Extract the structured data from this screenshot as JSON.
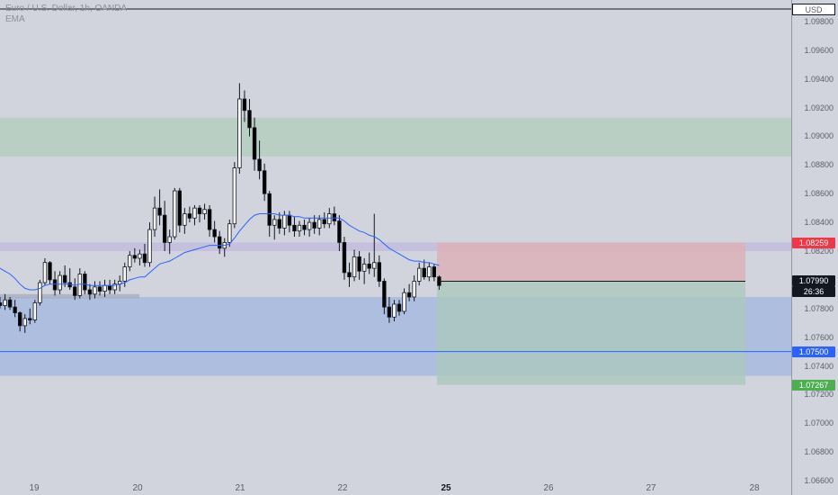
{
  "legend": {
    "symbol": "Euro / U.S. Dollar, 1h, OANDA",
    "indicator": "EMA"
  },
  "currency": "USD",
  "price_scale": {
    "ticks": [
      "1.09800",
      "1.09600",
      "1.09400",
      "1.09200",
      "1.09000",
      "1.08800",
      "1.08600",
      "1.08400",
      "1.08200",
      "1.07800",
      "1.07600",
      "1.07400",
      "1.07200",
      "1.07000",
      "1.06800",
      "1.06600"
    ]
  },
  "time_scale": {
    "labels": [
      "19",
      "20",
      "21",
      "22",
      "25",
      "26",
      "27",
      "28"
    ],
    "bold_label": "25"
  },
  "badges": {
    "stop_price": "1.08259",
    "entry_price": "1.07990",
    "countdown": "26:36",
    "alert_price": "1.07500",
    "target_price": "1.07267"
  },
  "colors": {
    "background": "#d1d4dc",
    "candle_up": "#ffffff",
    "candle_down": "#000000",
    "ema": "#2962ff",
    "supply_zone": "#b9cfc4",
    "demand_zone": "#aebedf",
    "resistance_band": "#c6c0df",
    "stop_zone": "#dcb2ba",
    "target_zone": "#a9c8bc",
    "stop_badge": "#f23645",
    "alert_badge": "#2962ff",
    "target_badge": "#4caf50",
    "entry_badge": "#131722"
  },
  "chart_data": {
    "type": "candlestick",
    "symbol": "Euro / U.S. Dollar, 1h, OANDA",
    "yrange": [
      1.065,
      1.0995
    ],
    "levels": {
      "supply_zone": [
        1.0886,
        1.0913
      ],
      "resistance_band": [
        1.082,
        1.0826
      ],
      "demand_zone": [
        1.0733,
        1.0788
      ],
      "alert_line": 1.075,
      "position_entry": 1.0799,
      "position_stop": 1.08259,
      "position_target": 1.07267
    },
    "candles": [
      [
        1.0784,
        1.0788,
        1.078,
        1.0782
      ],
      [
        1.0782,
        1.079,
        1.0779,
        1.0786
      ],
      [
        1.0786,
        1.0788,
        1.0779,
        1.0781
      ],
      [
        1.0781,
        1.0786,
        1.0774,
        1.0777
      ],
      [
        1.0777,
        1.0778,
        1.0764,
        1.0768
      ],
      [
        1.0768,
        1.0776,
        1.0763,
        1.0773
      ],
      [
        1.0773,
        1.078,
        1.0769,
        1.0772
      ],
      [
        1.0772,
        1.0786,
        1.077,
        1.0784
      ],
      [
        1.0784,
        1.08,
        1.0782,
        1.0798
      ],
      [
        1.0798,
        1.0815,
        1.0796,
        1.0812
      ],
      [
        1.0812,
        1.0813,
        1.0797,
        1.08
      ],
      [
        1.08,
        1.0806,
        1.0789,
        1.0793
      ],
      [
        1.0793,
        1.0806,
        1.079,
        1.0803
      ],
      [
        1.0803,
        1.081,
        1.0795,
        1.0798
      ],
      [
        1.0798,
        1.0808,
        1.0793,
        1.0795
      ],
      [
        1.0795,
        1.0801,
        1.0786,
        1.0789
      ],
      [
        1.0789,
        1.0808,
        1.0787,
        1.0804
      ],
      [
        1.0804,
        1.0806,
        1.079,
        1.0793
      ],
      [
        1.0793,
        1.0797,
        1.0786,
        1.079
      ],
      [
        1.079,
        1.0799,
        1.0787,
        1.0795
      ],
      [
        1.0795,
        1.0799,
        1.0789,
        1.0792
      ],
      [
        1.0792,
        1.08,
        1.0788,
        1.0796
      ],
      [
        1.0796,
        1.08,
        1.079,
        1.0793
      ],
      [
        1.0793,
        1.08,
        1.079,
        1.0797
      ],
      [
        1.0797,
        1.0803,
        1.0792,
        1.0799
      ],
      [
        1.0799,
        1.0812,
        1.0795,
        1.0809
      ],
      [
        1.0809,
        1.082,
        1.0806,
        1.0817
      ],
      [
        1.0817,
        1.0822,
        1.0812,
        1.0815
      ],
      [
        1.0815,
        1.0821,
        1.081,
        1.0818
      ],
      [
        1.0818,
        1.0825,
        1.0809,
        1.0812
      ],
      [
        1.0812,
        1.084,
        1.0809,
        1.0835
      ],
      [
        1.0835,
        1.0858,
        1.083,
        1.085
      ],
      [
        1.085,
        1.0863,
        1.0838,
        1.0845
      ],
      [
        1.0845,
        1.0855,
        1.082,
        1.0826
      ],
      [
        1.0826,
        1.0835,
        1.0818,
        1.083
      ],
      [
        1.083,
        1.0864,
        1.0828,
        1.0862
      ],
      [
        1.0862,
        1.0864,
        1.0833,
        1.0838
      ],
      [
        1.0838,
        1.085,
        1.0832,
        1.0846
      ],
      [
        1.0846,
        1.0851,
        1.084,
        1.0843
      ],
      [
        1.0843,
        1.0852,
        1.0838,
        1.085
      ],
      [
        1.085,
        1.0852,
        1.084,
        1.0846
      ],
      [
        1.0846,
        1.0853,
        1.0842,
        1.0849
      ],
      [
        1.0849,
        1.0852,
        1.083,
        1.0835
      ],
      [
        1.0835,
        1.0841,
        1.0826,
        1.083
      ],
      [
        1.083,
        1.0834,
        1.0818,
        1.0822
      ],
      [
        1.0822,
        1.0829,
        1.0816,
        1.0826
      ],
      [
        1.0826,
        1.0842,
        1.0823,
        1.0839
      ],
      [
        1.0839,
        1.0882,
        1.0836,
        1.0878
      ],
      [
        1.0878,
        1.0937,
        1.0874,
        1.0926
      ],
      [
        1.0926,
        1.0932,
        1.091,
        1.0918
      ],
      [
        1.0918,
        1.0926,
        1.09,
        1.0906
      ],
      [
        1.0906,
        1.0913,
        1.0876,
        1.0884
      ],
      [
        1.0884,
        1.0897,
        1.087,
        1.0876
      ],
      [
        1.0876,
        1.0881,
        1.0855,
        1.086
      ],
      [
        1.086,
        1.0862,
        1.083,
        1.0838
      ],
      [
        1.0838,
        1.0845,
        1.0828,
        1.0842
      ],
      [
        1.0842,
        1.0847,
        1.0832,
        1.0836
      ],
      [
        1.0836,
        1.0848,
        1.0831,
        1.0845
      ],
      [
        1.0845,
        1.0848,
        1.0833,
        1.0838
      ],
      [
        1.0838,
        1.0844,
        1.083,
        1.0834
      ],
      [
        1.0834,
        1.0841,
        1.083,
        1.0838
      ],
      [
        1.0838,
        1.0842,
        1.0831,
        1.0835
      ],
      [
        1.0835,
        1.0843,
        1.083,
        1.084
      ],
      [
        1.084,
        1.0845,
        1.0832,
        1.0836
      ],
      [
        1.0836,
        1.0845,
        1.0831,
        1.0842
      ],
      [
        1.0842,
        1.0847,
        1.0836,
        1.0839
      ],
      [
        1.0839,
        1.085,
        1.0836,
        1.0846
      ],
      [
        1.0846,
        1.0851,
        1.0838,
        1.0841
      ],
      [
        1.0841,
        1.0845,
        1.082,
        1.0826
      ],
      [
        1.0826,
        1.083,
        1.08,
        1.0805
      ],
      [
        1.0805,
        1.0812,
        1.0795,
        1.0802
      ],
      [
        1.0802,
        1.0821,
        1.0799,
        1.0816
      ],
      [
        1.0816,
        1.082,
        1.08,
        1.0806
      ],
      [
        1.0806,
        1.0815,
        1.0797,
        1.0811
      ],
      [
        1.0811,
        1.0819,
        1.0804,
        1.0808
      ],
      [
        1.0808,
        1.0846,
        1.0802,
        1.0812
      ],
      [
        1.0812,
        1.0817,
        1.0795,
        1.0799
      ],
      [
        1.0799,
        1.0801,
        1.0776,
        1.0781
      ],
      [
        1.0781,
        1.0788,
        1.077,
        1.0774
      ],
      [
        1.0774,
        1.0786,
        1.0771,
        1.0783
      ],
      [
        1.0783,
        1.0786,
        1.0775,
        1.0778
      ],
      [
        1.0778,
        1.0794,
        1.0776,
        1.0791
      ],
      [
        1.0791,
        1.0797,
        1.0785,
        1.0788
      ],
      [
        1.0788,
        1.0803,
        1.0785,
        1.0799
      ],
      [
        1.0799,
        1.0812,
        1.0796,
        1.0808
      ],
      [
        1.0808,
        1.0814,
        1.08,
        1.0802
      ],
      [
        1.0802,
        1.0812,
        1.0799,
        1.0809
      ],
      [
        1.0809,
        1.0811,
        1.0799,
        1.0802
      ],
      [
        1.0802,
        1.0803,
        1.0793,
        1.0796
      ]
    ],
    "ema": [
      1.0808,
      1.0806,
      1.0804,
      1.0801,
      1.0797,
      1.0794,
      1.0793,
      1.0793,
      1.0794,
      1.0796,
      1.0797,
      1.0797,
      1.0797,
      1.0797,
      1.0797,
      1.0796,
      1.0797,
      1.0797,
      1.0796,
      1.0796,
      1.0796,
      1.0796,
      1.0796,
      1.0796,
      1.0797,
      1.0798,
      1.08,
      1.0801,
      1.0802,
      1.0802,
      1.0805,
      1.0808,
      1.0811,
      1.0812,
      1.0813,
      1.0815,
      1.0817,
      1.0819,
      1.082,
      1.0821,
      1.0822,
      1.0823,
      1.0824,
      1.0824,
      1.0824,
      1.0824,
      1.0825,
      1.0829,
      1.0834,
      1.0838,
      1.0842,
      1.0845,
      1.0846,
      1.0846,
      1.0846,
      1.0846,
      1.0845,
      1.0845,
      1.0845,
      1.0844,
      1.0844,
      1.0843,
      1.0843,
      1.0843,
      1.0843,
      1.0843,
      1.0843,
      1.0843,
      1.0843,
      1.0841,
      1.0838,
      1.0836,
      1.0834,
      1.0833,
      1.0831,
      1.083,
      1.0828,
      1.0825,
      1.0822,
      1.082,
      1.0818,
      1.0816,
      1.0814,
      1.0813,
      1.0813,
      1.0812,
      1.0812,
      1.0811,
      1.081
    ]
  }
}
